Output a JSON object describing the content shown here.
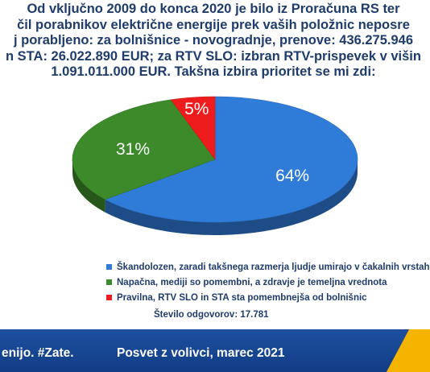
{
  "title": {
    "lines": [
      "Od vključno 2009 do konca 2020 je bilo iz Proračuna RS ter",
      "čil porabnikov električne energije prek vaših položnic neposre",
      "j porabljeno: za bolnišnice - novogradnje, prenove: 436.275.946",
      "n STA: 26.022.890 EUR; za RTV SLO: izbran RTV-prispevek v višin",
      "1.091.011.000 EUR. Takšna izbira prioritet se mi zdi:"
    ]
  },
  "chart_data": {
    "type": "pie",
    "slices": [
      {
        "label": "Škandolozen, zaradi takšnega razmerja ljudje umirajo v čakalnih vrstah",
        "value": 64,
        "display": "64%",
        "color": "#2f7bd8"
      },
      {
        "label": "Napačna, mediji so pomembni, a zdravje je temeljna vrednota",
        "value": 31,
        "display": "31%",
        "color": "#3d8a2a"
      },
      {
        "label": "Pravilna, RTV SLO in STA sta pomembnejša od bolnišnic",
        "value": 5,
        "display": "5%",
        "color": "#ee1c1c"
      }
    ],
    "legend_position": "bottom",
    "style": "3d"
  },
  "responses_text": "Število odgovorov: 17.781",
  "footer": {
    "left": "enijo. #Zate.",
    "right": "Posvet z volivci, marec 2021"
  },
  "colors": {
    "title": "#1e3c6c",
    "bar": "#1c4f9e",
    "accent": "#f4b400"
  }
}
